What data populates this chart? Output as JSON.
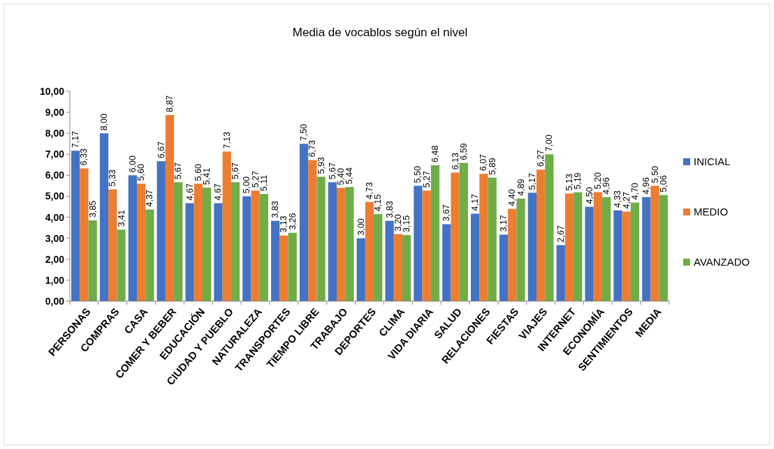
{
  "chart_data": {
    "type": "bar",
    "title": "Media de vocablos según el nivel",
    "categories": [
      "PERSONAS",
      "COMPRAS",
      "CASA",
      "COMER Y BEBER",
      "EDUCACIÓN",
      "CIUDAD Y PUEBLO",
      "NATURALEZA",
      "TRANSPORTES",
      "TIEMPO LIBRE",
      "TRABAJO",
      "DEPORTES",
      "CLIMA",
      "VIDA DIARIA",
      "SALUD",
      "RELACIONES",
      "FIESTAS",
      "VIAJES",
      "INTERNET",
      "ECONOMÍA",
      "SENTIMIENTOS",
      "MEDIA"
    ],
    "series": [
      {
        "name": "INICIAL",
        "color": "#4472c4",
        "values": [
          7.17,
          8.0,
          6.0,
          6.67,
          4.67,
          4.67,
          5.0,
          3.83,
          7.5,
          5.67,
          3.0,
          3.83,
          5.5,
          3.67,
          4.17,
          3.17,
          5.17,
          2.67,
          4.5,
          4.33,
          4.96
        ],
        "value_labels": [
          "7,17",
          "8,00",
          "6,00",
          "6,67",
          "4,67",
          "4,67",
          "5,00",
          "3,83",
          "7,50",
          "5,67",
          "3,00",
          "3,83",
          "5,50",
          "3,67",
          "4,17",
          "3,17",
          "5,17",
          "2,67",
          "4,50",
          "4,33",
          "4,96"
        ]
      },
      {
        "name": "MEDIO",
        "color": "#ed7d31",
        "values": [
          6.33,
          5.33,
          5.6,
          8.87,
          5.6,
          7.13,
          5.27,
          3.13,
          6.73,
          5.4,
          4.73,
          3.2,
          5.27,
          6.13,
          6.07,
          4.4,
          6.27,
          5.13,
          5.2,
          4.27,
          5.5
        ],
        "value_labels": [
          "6,33",
          "5,33",
          "5,60",
          "8,87",
          "5,60",
          "7,13",
          "5,27",
          "3,13",
          "6,73",
          "5,40",
          "4,73",
          "3,20",
          "5,27",
          "6,13",
          "6,07",
          "4,40",
          "6,27",
          "5,13",
          "5,20",
          "4,27",
          "5,50"
        ]
      },
      {
        "name": "AVANZADO",
        "color": "#70ad47",
        "values": [
          3.85,
          3.41,
          4.37,
          5.67,
          5.41,
          5.67,
          5.11,
          3.26,
          5.93,
          5.44,
          4.15,
          3.15,
          6.48,
          6.59,
          5.89,
          4.89,
          7.0,
          5.19,
          4.96,
          4.7,
          5.06
        ],
        "value_labels": [
          "3,85",
          "3,41",
          "4,37",
          "5,67",
          "5,41",
          "5,67",
          "5,11",
          "3,26",
          "5,93",
          "5,44",
          "4,15",
          "3,15",
          "6,48",
          "6,59",
          "5,89",
          "4,89",
          "7,00",
          "5,19",
          "4,96",
          "4,70",
          "5,06"
        ]
      }
    ],
    "ylim": [
      0,
      10
    ],
    "yticks": [
      {
        "value": 0,
        "label": "0,00"
      },
      {
        "value": 1,
        "label": "1,00"
      },
      {
        "value": 2,
        "label": "2,00"
      },
      {
        "value": 3,
        "label": "3,00"
      },
      {
        "value": 4,
        "label": "4,00"
      },
      {
        "value": 5,
        "label": "5,00"
      },
      {
        "value": 6,
        "label": "6,00"
      },
      {
        "value": 7,
        "label": "7,00"
      },
      {
        "value": 8,
        "label": "8,00"
      },
      {
        "value": 9,
        "label": "9,00"
      },
      {
        "value": 10,
        "label": "10,00"
      }
    ],
    "grid": false,
    "legend": "right"
  }
}
